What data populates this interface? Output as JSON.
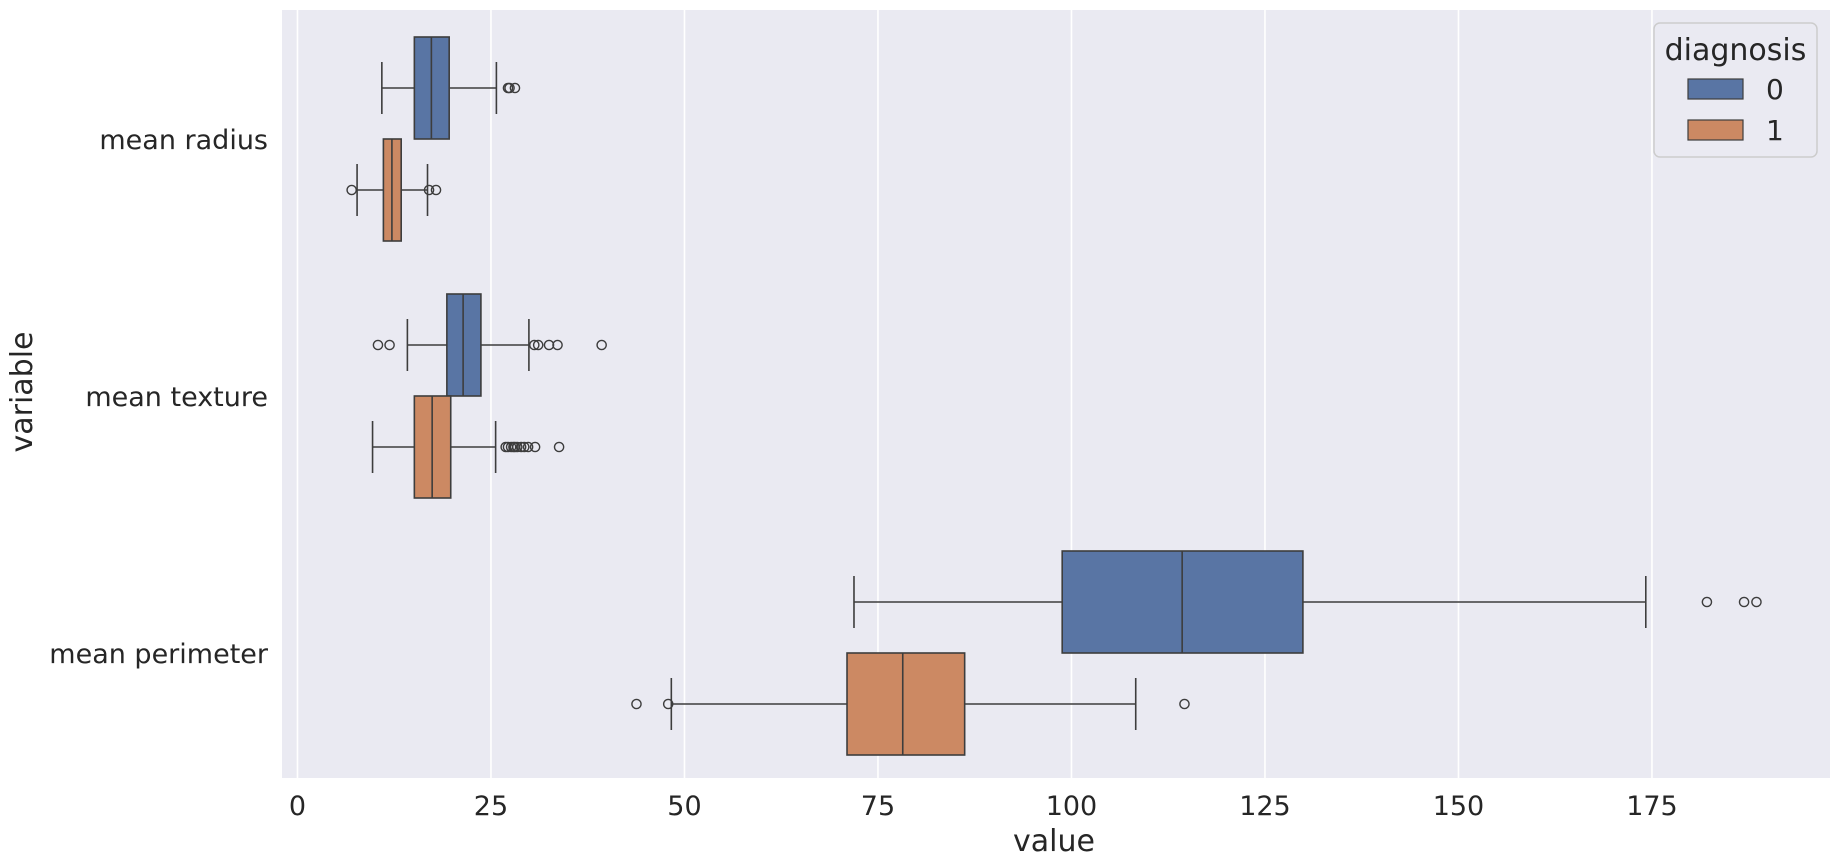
{
  "chart_data": {
    "type": "boxplot",
    "orientation": "horizontal",
    "xlabel": "value",
    "ylabel": "variable",
    "xlim": [
      -2,
      198
    ],
    "xticks": [
      0,
      25,
      50,
      75,
      100,
      125,
      150,
      175
    ],
    "grid": true,
    "categories": [
      "mean radius",
      "mean texture",
      "mean perimeter"
    ],
    "legend": {
      "title": "diagnosis",
      "position": "top-right",
      "entries": [
        {
          "label": "0",
          "color": "#5975a4"
        },
        {
          "label": "1",
          "color": "#cc8963"
        }
      ]
    },
    "colors": {
      "background": "#eaeaf2",
      "grid": "#ffffff",
      "line": "#3d3d3d",
      "text": "#262626"
    },
    "series": [
      {
        "name": "0",
        "color": "#5975a4",
        "boxes": [
          {
            "category": "mean radius",
            "whisker_low": 10.9,
            "q1": 15.1,
            "median": 17.3,
            "q3": 19.6,
            "whisker_high": 25.7,
            "outliers": [
              27.2,
              27.4,
              28.1
            ]
          },
          {
            "category": "mean texture",
            "whisker_low": 14.2,
            "q1": 19.3,
            "median": 21.4,
            "q3": 23.7,
            "whisker_high": 29.9,
            "outliers": [
              10.4,
              11.9,
              30.6,
              31.1,
              32.5,
              33.6,
              39.3
            ]
          },
          {
            "category": "mean perimeter",
            "whisker_low": 71.9,
            "q1": 98.8,
            "median": 114.3,
            "q3": 129.9,
            "whisker_high": 174.2,
            "outliers": [
              182.1,
              186.9,
              188.5
            ]
          }
        ]
      },
      {
        "name": "1",
        "color": "#cc8963",
        "boxes": [
          {
            "category": "mean radius",
            "whisker_low": 7.7,
            "q1": 11.1,
            "median": 12.2,
            "q3": 13.4,
            "whisker_high": 16.8,
            "outliers": [
              7.0,
              17.0,
              17.9
            ]
          },
          {
            "category": "mean texture",
            "whisker_low": 9.7,
            "q1": 15.1,
            "median": 17.4,
            "q3": 19.8,
            "whisker_high": 25.6,
            "outliers": [
              26.9,
              27.2,
              27.6,
              27.9,
              28.1,
              28.4,
              28.9,
              29.3,
              29.8,
              30.7,
              33.8
            ]
          },
          {
            "category": "mean perimeter",
            "whisker_low": 48.3,
            "q1": 71.0,
            "median": 78.2,
            "q3": 86.2,
            "whisker_high": 108.3,
            "outliers": [
              43.8,
              47.9,
              114.6
            ]
          }
        ]
      }
    ]
  }
}
